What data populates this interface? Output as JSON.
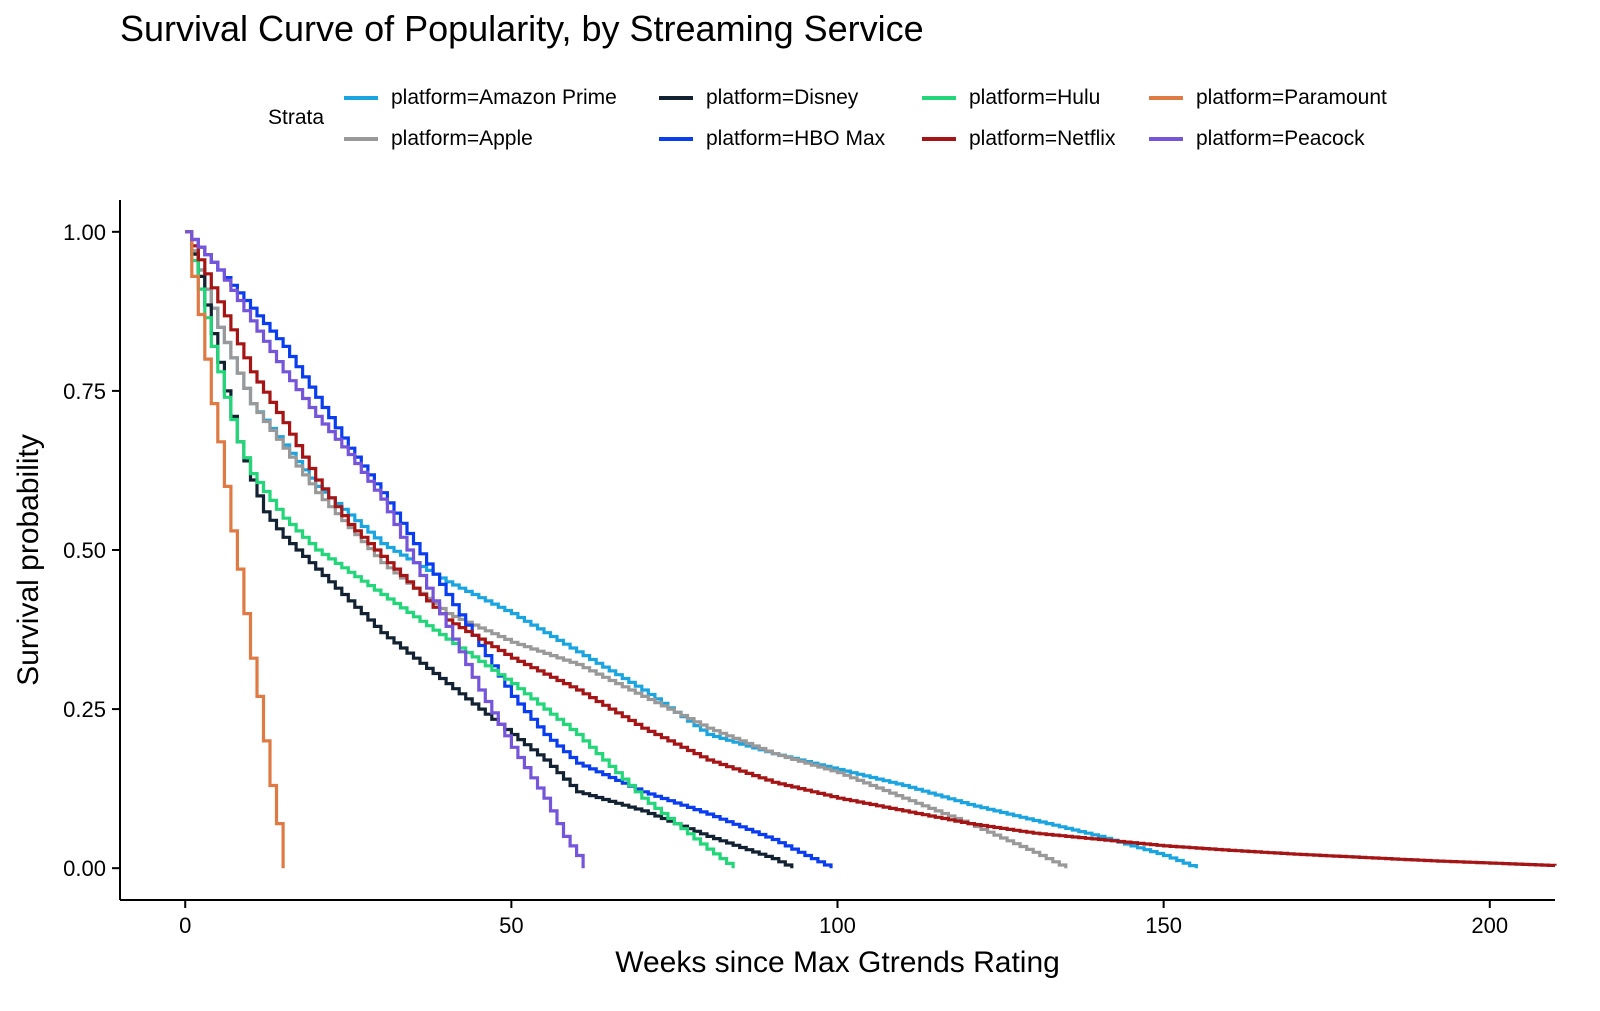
{
  "chart_data": {
    "type": "line",
    "step": true,
    "title": "Survival Curve of Popularity, by Streaming Service",
    "xlabel": "Weeks since Max Gtrends Rating",
    "ylabel": "Survival probability",
    "xlim": [
      -10,
      210
    ],
    "ylim": [
      -0.05,
      1.05
    ],
    "xticks": [
      0,
      50,
      100,
      150,
      200
    ],
    "xtick_labels": [
      "0",
      "50",
      "100",
      "150",
      "200"
    ],
    "yticks": [
      0,
      0.25,
      0.5,
      0.75,
      1
    ],
    "ytick_labels": [
      "0.00",
      "0.25",
      "0.50",
      "0.75",
      "1.00"
    ],
    "grid": false,
    "legend_title": "Strata",
    "legend_position": "top",
    "series": [
      {
        "name": "platform=Amazon Prime",
        "color": "#1AA5E0",
        "x": [
          0,
          5,
          10,
          20,
          30,
          40,
          50,
          60,
          70,
          80,
          90,
          100,
          110,
          120,
          130,
          140,
          150,
          155
        ],
        "y": [
          1,
          0.85,
          0.73,
          0.6,
          0.51,
          0.45,
          0.4,
          0.34,
          0.28,
          0.21,
          0.18,
          0.155,
          0.13,
          0.1,
          0.075,
          0.05,
          0.02,
          0.0
        ]
      },
      {
        "name": "platform=Apple",
        "color": "#999999",
        "x": [
          0,
          5,
          10,
          20,
          30,
          40,
          50,
          60,
          70,
          80,
          90,
          100,
          110,
          120,
          130,
          135
        ],
        "y": [
          1,
          0.85,
          0.73,
          0.59,
          0.48,
          0.4,
          0.355,
          0.32,
          0.27,
          0.22,
          0.18,
          0.15,
          0.11,
          0.07,
          0.025,
          0.0
        ]
      },
      {
        "name": "platform=Disney",
        "color": "#132233",
        "x": [
          0,
          2,
          4,
          6,
          8,
          10,
          12,
          15,
          20,
          30,
          40,
          50,
          55,
          60,
          70,
          80,
          90,
          93
        ],
        "y": [
          1,
          0.93,
          0.84,
          0.75,
          0.67,
          0.61,
          0.56,
          0.52,
          0.47,
          0.37,
          0.29,
          0.21,
          0.17,
          0.12,
          0.09,
          0.05,
          0.015,
          0.0
        ]
      },
      {
        "name": "platform=HBO Max",
        "color": "#0A3CF0",
        "x": [
          0,
          5,
          10,
          15,
          20,
          25,
          30,
          35,
          40,
          45,
          50,
          55,
          60,
          70,
          80,
          90,
          99
        ],
        "y": [
          1,
          0.94,
          0.88,
          0.82,
          0.74,
          0.66,
          0.59,
          0.51,
          0.43,
          0.35,
          0.27,
          0.21,
          0.165,
          0.12,
          0.085,
          0.045,
          0.0
        ]
      },
      {
        "name": "platform=Hulu",
        "color": "#22D679",
        "x": [
          0,
          2,
          4,
          6,
          8,
          10,
          15,
          20,
          30,
          40,
          50,
          60,
          70,
          75,
          80,
          84
        ],
        "y": [
          1,
          0.91,
          0.82,
          0.74,
          0.67,
          0.62,
          0.55,
          0.5,
          0.43,
          0.36,
          0.29,
          0.21,
          0.11,
          0.07,
          0.03,
          0.0
        ]
      },
      {
        "name": "platform=Netflix",
        "color": "#A51515",
        "x": [
          0,
          5,
          10,
          15,
          20,
          25,
          30,
          40,
          50,
          60,
          70,
          80,
          90,
          100,
          110,
          120,
          130,
          140,
          150,
          160,
          170,
          180,
          190,
          200,
          210
        ],
        "y": [
          1,
          0.89,
          0.78,
          0.7,
          0.61,
          0.54,
          0.49,
          0.39,
          0.33,
          0.28,
          0.22,
          0.17,
          0.135,
          0.11,
          0.09,
          0.07,
          0.055,
          0.045,
          0.035,
          0.028,
          0.022,
          0.017,
          0.012,
          0.008,
          0.004
        ]
      },
      {
        "name": "platform=Paramount",
        "color": "#E07A45",
        "x": [
          0,
          1,
          2,
          3,
          4,
          5,
          6,
          7,
          8,
          9,
          10,
          11,
          12,
          13,
          14,
          15
        ],
        "y": [
          1,
          0.93,
          0.87,
          0.8,
          0.73,
          0.67,
          0.6,
          0.53,
          0.47,
          0.4,
          0.33,
          0.27,
          0.2,
          0.13,
          0.07,
          0.0
        ]
      },
      {
        "name": "platform=Peacock",
        "color": "#7555D9",
        "x": [
          0,
          5,
          10,
          15,
          20,
          25,
          30,
          35,
          40,
          45,
          50,
          55,
          58,
          60,
          61
        ],
        "y": [
          1,
          0.94,
          0.86,
          0.78,
          0.71,
          0.65,
          0.58,
          0.48,
          0.38,
          0.28,
          0.19,
          0.11,
          0.05,
          0.02,
          0.0
        ]
      }
    ]
  }
}
